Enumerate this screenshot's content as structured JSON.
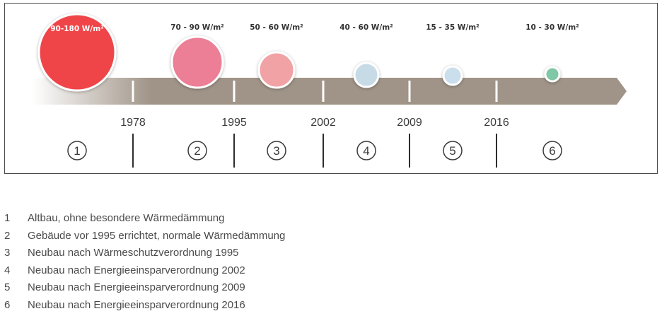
{
  "diagram": {
    "eras": [
      {
        "id": 1,
        "label": "90-180 W/m²",
        "color": "#ef4448"
      },
      {
        "id": 2,
        "label": "70 - 90 W/m²",
        "color": "#ec7e96"
      },
      {
        "id": 3,
        "label": "50 - 60 W/m²",
        "color": "#f1a2a5"
      },
      {
        "id": 4,
        "label": "40 - 60 W/m²",
        "color": "#c6dbe6"
      },
      {
        "id": 5,
        "label": "15 - 35 W/m²",
        "color": "#cbdeec"
      },
      {
        "id": 6,
        "label": "10 - 30 W/m²",
        "color": "#7fc7a6"
      }
    ],
    "years": [
      "1978",
      "1995",
      "2002",
      "2009",
      "2016"
    ],
    "numbers": [
      "1",
      "2",
      "3",
      "4",
      "5",
      "6"
    ],
    "arrow_color": "#a09488"
  },
  "legend": [
    {
      "num": "1",
      "text": "Altbau, ohne besondere Wärmedämmung"
    },
    {
      "num": "2",
      "text": "Gebäude vor 1995 errichtet, normale Wärmedämmung"
    },
    {
      "num": "3",
      "text": "Neubau nach Wärmeschutzverordnung 1995"
    },
    {
      "num": "4",
      "text": "Neubau nach Energieeinsparverordnung 2002"
    },
    {
      "num": "5",
      "text": "Neubau nach Energieeinsparverordnung 2009"
    },
    {
      "num": "6",
      "text": "Neubau nach Energieeinsparverordnung 2016"
    }
  ]
}
